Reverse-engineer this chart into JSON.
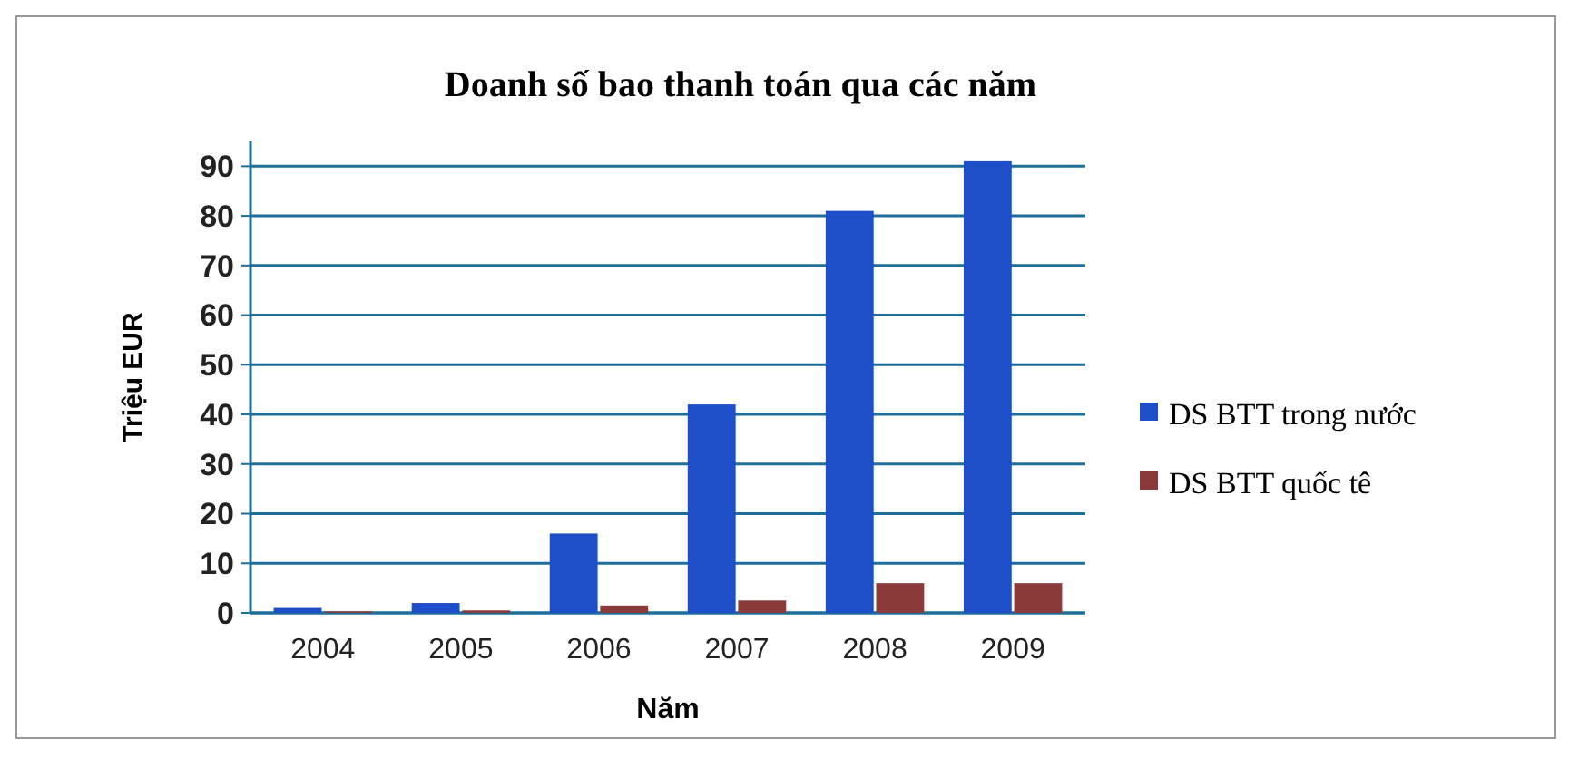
{
  "chart_data": {
    "type": "bar",
    "title": "Doanh số bao thanh toán qua các năm",
    "xlabel": "Năm",
    "ylabel": "Triệu EUR",
    "categories": [
      "2004",
      "2005",
      "2006",
      "2007",
      "2008",
      "2009"
    ],
    "series": [
      {
        "name": "DS BTT trong nước",
        "color": "#1f4fc8",
        "values": [
          1,
          2,
          16,
          42,
          81,
          91
        ]
      },
      {
        "name": "DS BTT quốc tê",
        "color": "#8b3a3a",
        "values": [
          0.3,
          0.5,
          1.5,
          2.5,
          6,
          6
        ]
      }
    ],
    "ylim": [
      0,
      95
    ],
    "yticks": [
      0,
      10,
      20,
      30,
      40,
      50,
      60,
      70,
      80,
      90
    ],
    "grid": "y",
    "legend": "right"
  }
}
